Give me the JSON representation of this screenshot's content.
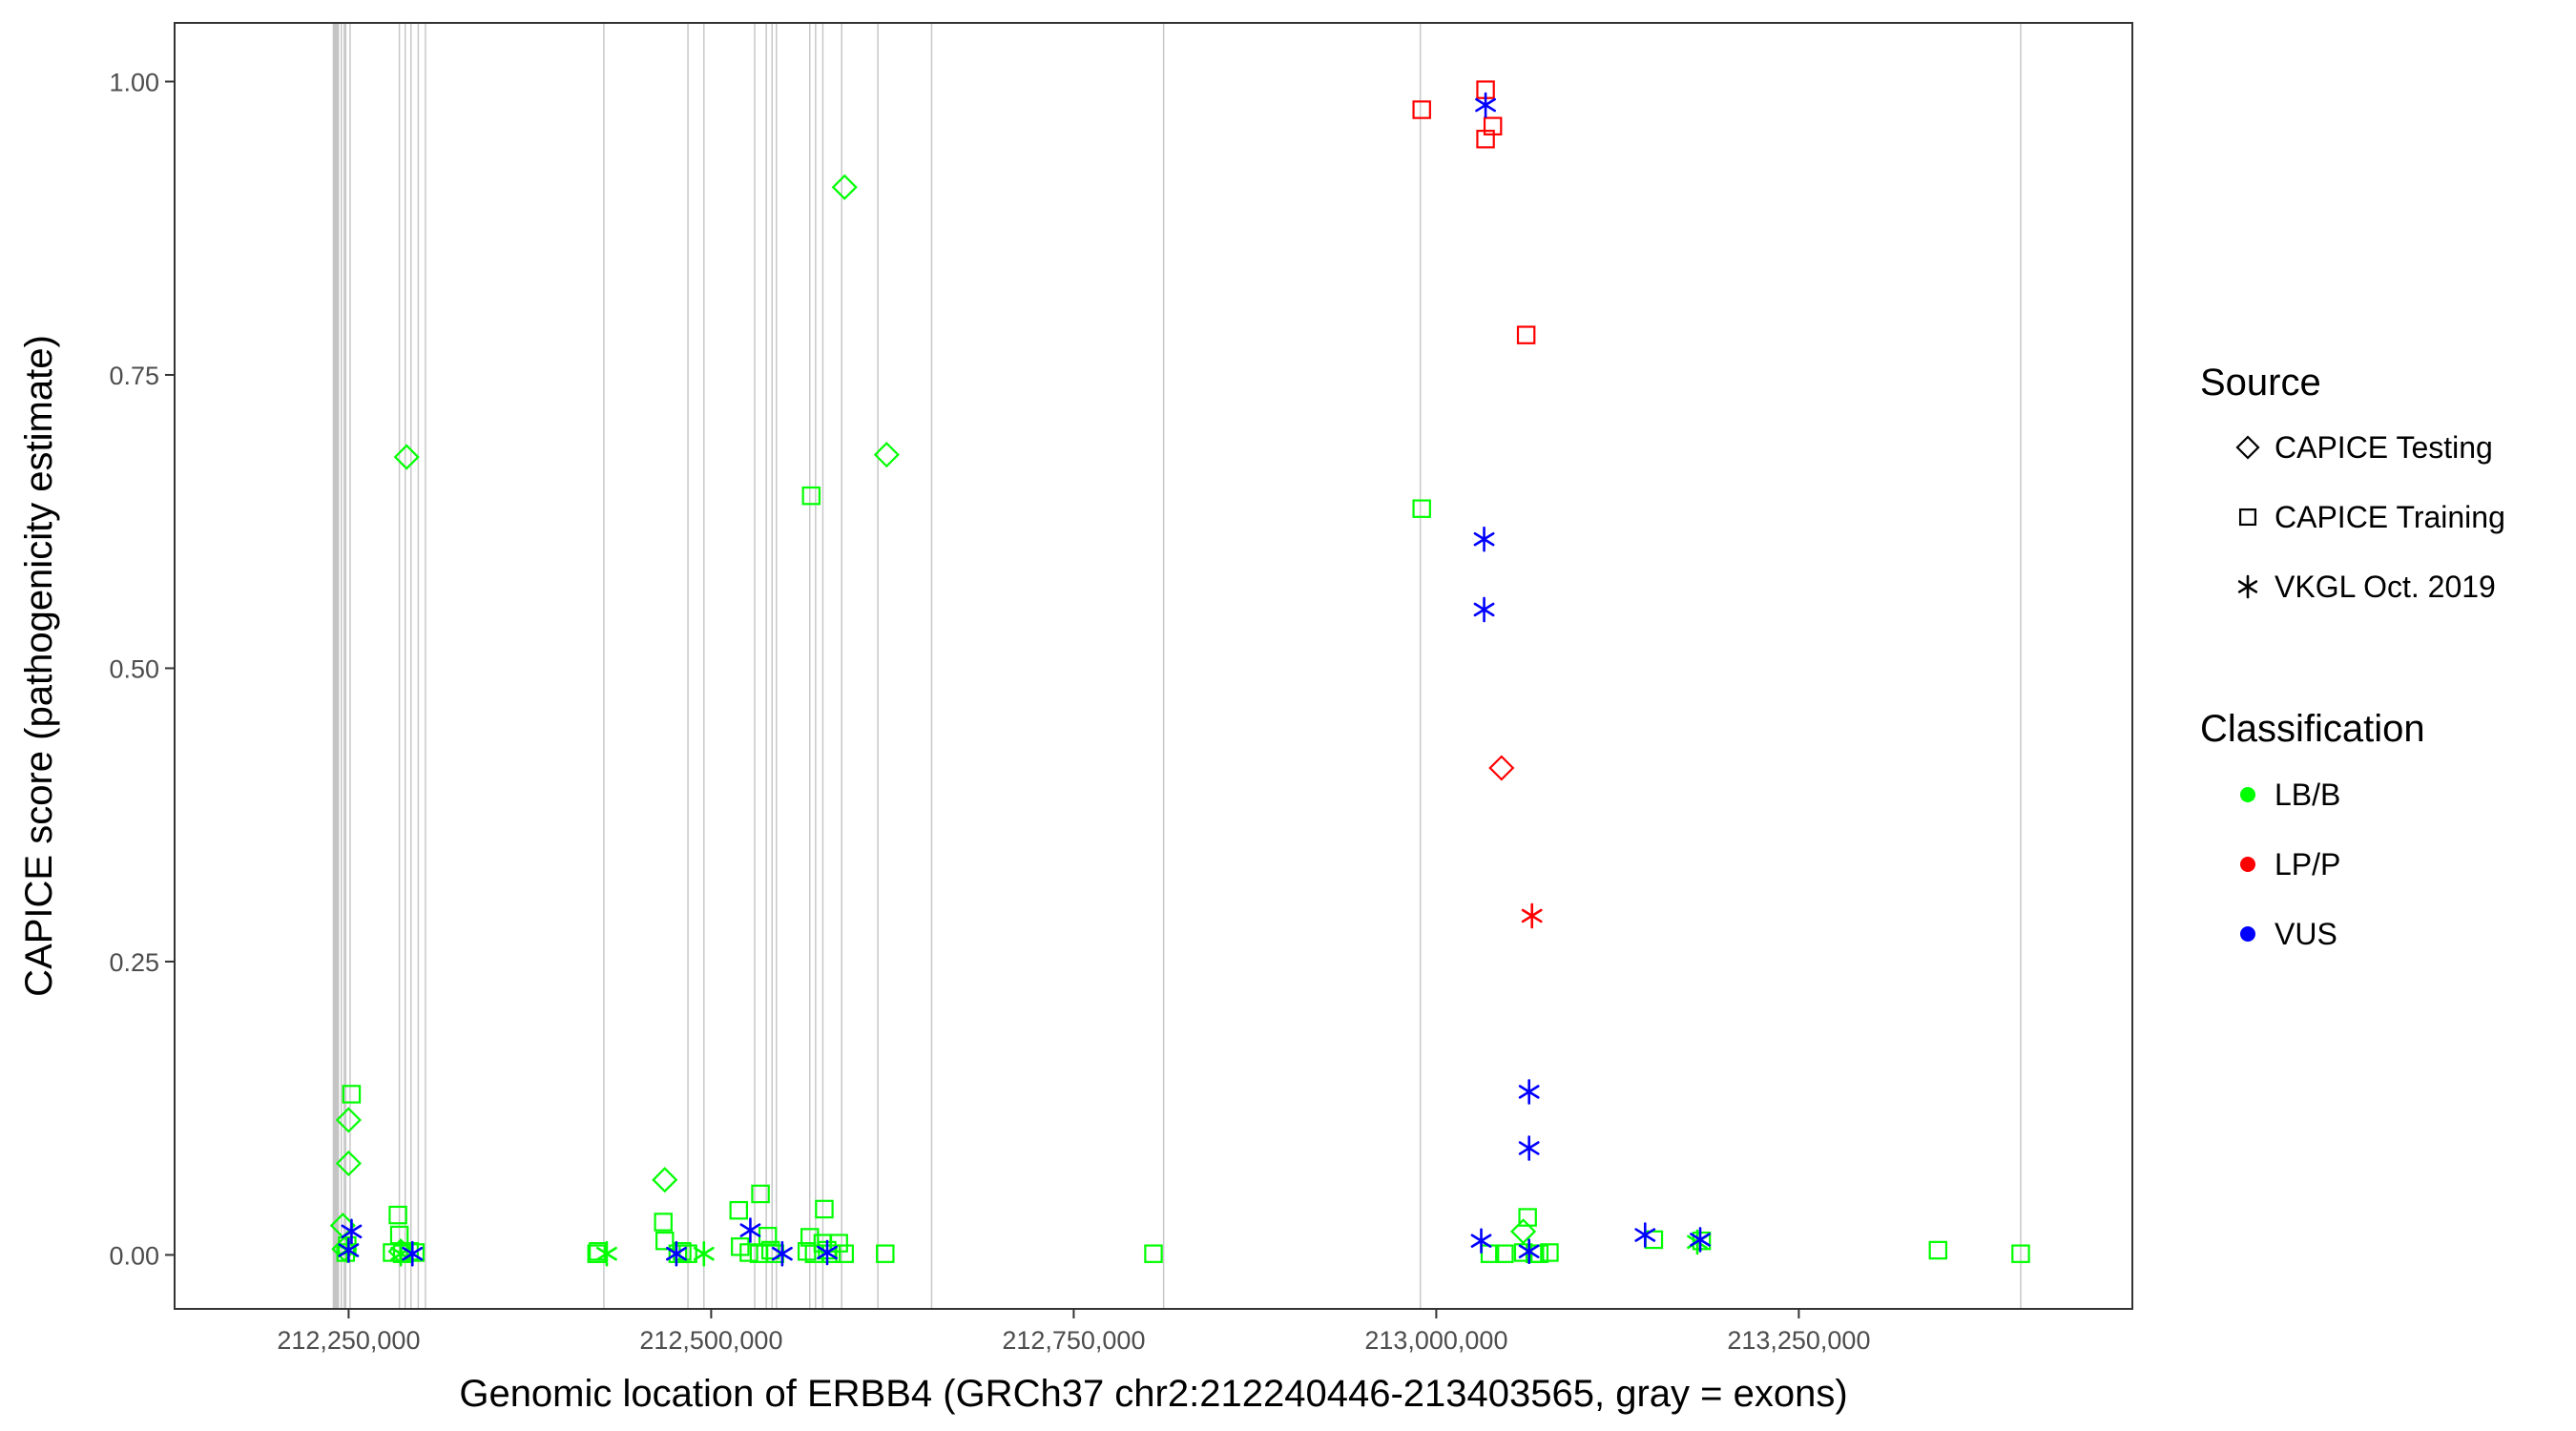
{
  "chart_data": {
    "type": "scatter",
    "xlabel": "Genomic location of ERBB4 (GRCh37 chr2:212240446-213403565, gray = exons)",
    "ylabel": "CAPICE score (pathogenicity estimate)",
    "xlim": [
      212130000,
      213480000
    ],
    "ylim": [
      -0.046,
      1.05
    ],
    "x_ticks": [
      212250000,
      212500000,
      212750000,
      213000000,
      213250000
    ],
    "x_tick_labels": [
      "212,250,000",
      "212,500,000",
      "212,750,000",
      "213,000,000",
      "213,250,000"
    ],
    "y_ticks": [
      0,
      0.25,
      0.5,
      0.75,
      1
    ],
    "y_tick_labels": [
      "0.00",
      "0.25",
      "0.50",
      "0.75",
      "1.00"
    ],
    "grid": false,
    "exons": [
      212243000,
      212245000,
      212247000,
      212248000,
      212251000,
      212285000,
      212289000,
      212293000,
      212298000,
      212303000,
      212426000,
      212484000,
      212495000,
      212530000,
      212538000,
      212542000,
      212545000,
      212568000,
      212572000,
      212577000,
      212590000,
      212615000,
      212652000,
      212812000,
      212989000,
      213403000
    ],
    "legend": {
      "position": "right",
      "source_title": "Source",
      "source_entries": [
        {
          "label": "CAPICE Testing",
          "shape": "diamond"
        },
        {
          "label": "CAPICE Training",
          "shape": "square"
        },
        {
          "label": "VKGL Oct. 2019",
          "shape": "asterisk"
        }
      ],
      "class_title": "Classification",
      "class_entries": [
        {
          "label": "LB/B",
          "color": "#00ff00"
        },
        {
          "label": "LP/P",
          "color": "#ff0000"
        },
        {
          "label": "VUS",
          "color": "#0000ff"
        }
      ]
    },
    "series": [
      {
        "source": "CAPICE Testing",
        "classification": "LB/B",
        "color": "#00ff00",
        "shape": "diamond",
        "points": [
          [
            212290000,
            0.68
          ],
          [
            212592000,
            0.91
          ],
          [
            212621000,
            0.682
          ],
          [
            212468000,
            0.064
          ],
          [
            212250000,
            0.115
          ],
          [
            212250000,
            0.078
          ],
          [
            212246000,
            0.025
          ],
          [
            212247000,
            0.005
          ],
          [
            212286000,
            0.003
          ],
          [
            213060000,
            0.02
          ]
        ]
      },
      {
        "source": "CAPICE Testing",
        "classification": "LP/P",
        "color": "#ff0000",
        "shape": "diamond",
        "points": [
          [
            213045000,
            0.415
          ]
        ]
      },
      {
        "source": "CAPICE Training",
        "classification": "LB/B",
        "color": "#00ff00",
        "shape": "square",
        "points": [
          [
            212252000,
            0.137
          ],
          [
            212249000,
            0.008
          ],
          [
            212248000,
            0.002
          ],
          [
            212284000,
            0.034
          ],
          [
            212285000,
            0.017
          ],
          [
            212280000,
            0.002
          ],
          [
            212287000,
            0.001
          ],
          [
            212292000,
            0.003
          ],
          [
            212296000,
            0.002
          ],
          [
            212421000,
            0.001
          ],
          [
            212422000,
            0.003
          ],
          [
            212467000,
            0.028
          ],
          [
            212468000,
            0.012
          ],
          [
            212477000,
            0.001
          ],
          [
            212480000,
            0.003
          ],
          [
            212484000,
            0.001
          ],
          [
            212519000,
            0.038
          ],
          [
            212534000,
            0.052
          ],
          [
            212520000,
            0.007
          ],
          [
            212526000,
            0.002
          ],
          [
            212533000,
            0.001
          ],
          [
            212539000,
            0.016
          ],
          [
            212541000,
            0.004
          ],
          [
            212544000,
            0.001
          ],
          [
            212569000,
            0.647
          ],
          [
            212568000,
            0.015
          ],
          [
            212566000,
            0.003
          ],
          [
            212571000,
            0.001
          ],
          [
            212578000,
            0.039
          ],
          [
            212577000,
            0.01
          ],
          [
            212580000,
            0.004
          ],
          [
            212583000,
            0.001
          ],
          [
            212588000,
            0.01
          ],
          [
            212592000,
            0.001
          ],
          [
            212620000,
            0.001
          ],
          [
            212805000,
            0.001
          ],
          [
            212990000,
            0.636
          ],
          [
            213037000,
            0.001
          ],
          [
            213047000,
            0.001
          ],
          [
            213063000,
            0.032
          ],
          [
            213060000,
            0.002
          ],
          [
            213068000,
            0.001
          ],
          [
            213071000,
            0.001
          ],
          [
            213078000,
            0.002
          ],
          [
            213150000,
            0.013
          ],
          [
            213183000,
            0.012
          ],
          [
            213346000,
            0.004
          ],
          [
            213403000,
            0.001
          ]
        ]
      },
      {
        "source": "CAPICE Training",
        "classification": "LP/P",
        "color": "#ff0000",
        "shape": "square",
        "points": [
          [
            212990000,
            0.976
          ],
          [
            213034000,
            0.993
          ],
          [
            213039000,
            0.962
          ],
          [
            213034000,
            0.951
          ],
          [
            213062000,
            0.784
          ]
        ]
      },
      {
        "source": "VKGL Oct. 2019",
        "classification": "LB/B",
        "color": "#00ff00",
        "shape": "asterisk",
        "points": [
          [
            212249000,
            0.004
          ],
          [
            212286000,
            0.001
          ],
          [
            212428000,
            0.001
          ],
          [
            212495000,
            0.001
          ],
          [
            213180000,
            0.011
          ]
        ]
      },
      {
        "source": "VKGL Oct. 2019",
        "classification": "LP/P",
        "color": "#ff0000",
        "shape": "asterisk",
        "points": [
          [
            213066000,
            0.289
          ]
        ]
      },
      {
        "source": "VKGL Oct. 2019",
        "classification": "VUS",
        "color": "#0000ff",
        "shape": "asterisk",
        "points": [
          [
            213034000,
            0.98
          ],
          [
            213033000,
            0.61
          ],
          [
            213033000,
            0.55
          ],
          [
            213064000,
            0.139
          ],
          [
            213064000,
            0.091
          ],
          [
            213144000,
            0.017
          ],
          [
            213182000,
            0.013
          ],
          [
            213031000,
            0.012
          ],
          [
            213064000,
            0.003
          ],
          [
            212252000,
            0.02
          ],
          [
            212250000,
            0.004
          ],
          [
            212294000,
            0.001
          ],
          [
            212527000,
            0.021
          ],
          [
            212476000,
            0.001
          ],
          [
            212549000,
            0.001
          ],
          [
            212580000,
            0.002
          ]
        ]
      }
    ]
  }
}
